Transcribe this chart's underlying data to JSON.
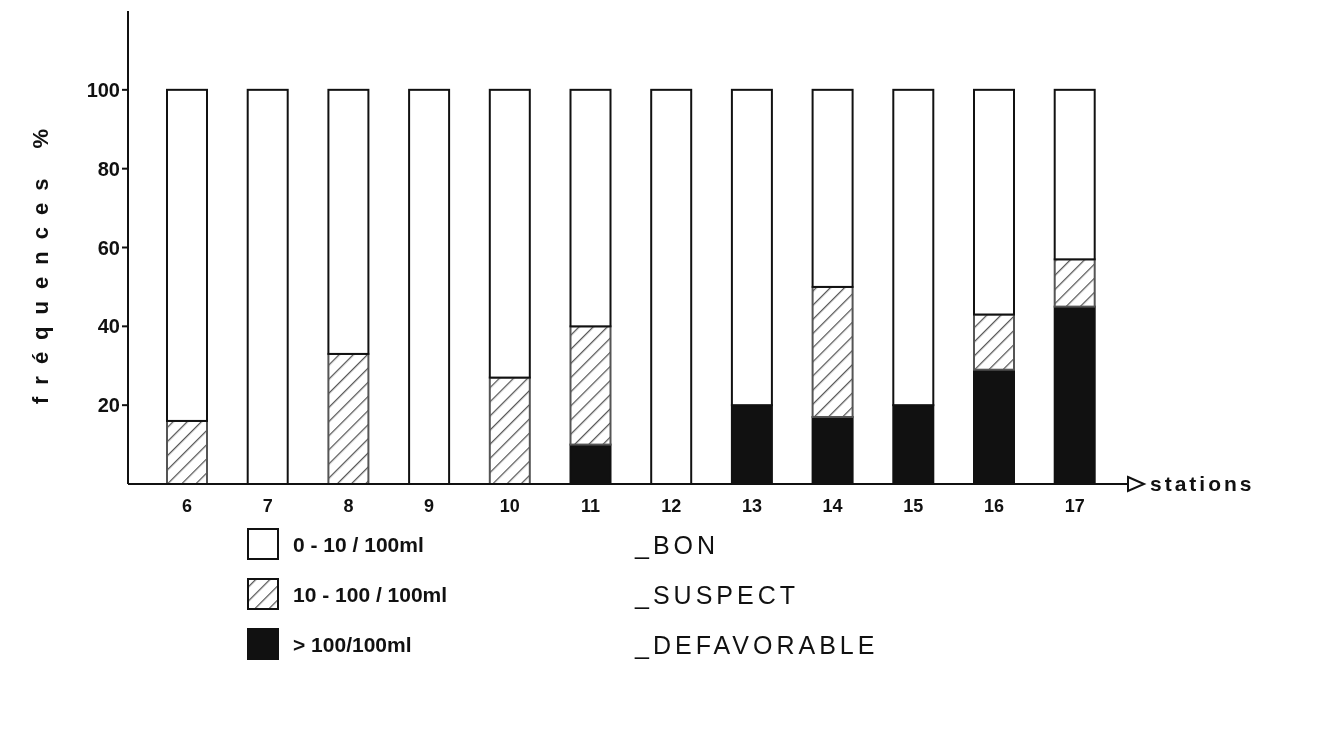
{
  "chart_data": {
    "type": "bar",
    "stacked": true,
    "xlabel": "stations",
    "ylabel": "fréquences %",
    "categories": [
      "6",
      "7",
      "8",
      "9",
      "10",
      "11",
      "12",
      "13",
      "14",
      "15",
      "16",
      "17"
    ],
    "series": [
      {
        "name": "> 100/100ml",
        "color": "#111111",
        "values": [
          0,
          0,
          0,
          0,
          0,
          10,
          0,
          20,
          17,
          20,
          29,
          45
        ]
      },
      {
        "name": "10 - 100 / 100ml",
        "color": "#555555",
        "values": [
          16,
          0,
          33,
          0,
          27,
          30,
          0,
          0,
          33,
          0,
          14,
          12
        ]
      },
      {
        "name": "0 - 10 / 100ml",
        "color": "#ffffff",
        "values": [
          84,
          100,
          67,
          100,
          73,
          60,
          100,
          80,
          50,
          80,
          57,
          43
        ]
      }
    ],
    "ylim": [
      0,
      120
    ],
    "yticks": [
      20,
      40,
      60,
      80,
      100
    ],
    "grid": false,
    "legend": "bottom",
    "annotations": [
      "_DEFAVORABLE",
      "_SUSPECT",
      "_BON"
    ]
  }
}
